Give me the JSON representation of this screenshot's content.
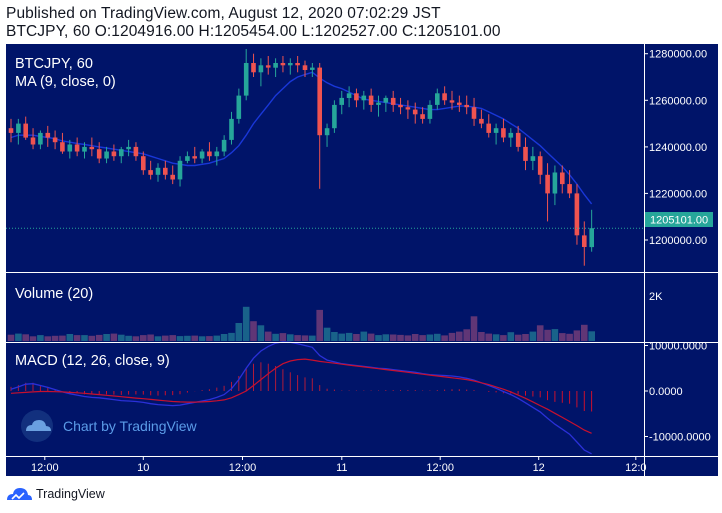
{
  "header": {
    "published_line": "Published on TradingView.com, August 12, 2020 07:02:29 JST",
    "ohlc_line": "BTCJPY, 60 O:1204916.00 H:1205454.00 L:1202527.00 C:1205101.00"
  },
  "footer": {
    "brand": "TradingView"
  },
  "colors": {
    "background": "#001469",
    "up": "#26a69a",
    "down": "#ef5350",
    "ma": "#1937d8",
    "macd": "#2a30d8",
    "signal": "#c8102e",
    "axis_text": "#ffffff",
    "price_tag": "#26a69a"
  },
  "watermark": {
    "text": "Chart by TradingView",
    "icon": "tradingview-cloud-icon"
  },
  "chart_data": [
    {
      "type": "candlestick",
      "title": "BTCJPY, 60",
      "indicator_label": "MA (9, close, 0)",
      "y_ticks": [
        "1280000.00",
        "1260000.00",
        "1240000.00",
        "1220000.00",
        "1200000.00"
      ],
      "ylim": [
        1188000,
        1282000
      ],
      "last_price": 1205101,
      "last_price_label": "1205101.00",
      "x_ticks": [
        "12:00",
        "10",
        "12:00",
        "11",
        "12:00",
        "12",
        "12:0"
      ],
      "ohlc": [
        [
          1248000,
          1252000,
          1242000,
          1246000
        ],
        [
          1246000,
          1252000,
          1241000,
          1250000
        ],
        [
          1250000,
          1253000,
          1243000,
          1244000
        ],
        [
          1244000,
          1248000,
          1239000,
          1241000
        ],
        [
          1241000,
          1247000,
          1239000,
          1246000
        ],
        [
          1246000,
          1249000,
          1240000,
          1244000
        ],
        [
          1244000,
          1247000,
          1239000,
          1242000
        ],
        [
          1242000,
          1246000,
          1237000,
          1238000
        ],
        [
          1238000,
          1243000,
          1235000,
          1241000
        ],
        [
          1241000,
          1244000,
          1236000,
          1238000
        ],
        [
          1238000,
          1242000,
          1235000,
          1240000
        ],
        [
          1240000,
          1244000,
          1236000,
          1239000
        ],
        [
          1239000,
          1242000,
          1233000,
          1235000
        ],
        [
          1235000,
          1240000,
          1233000,
          1238000
        ],
        [
          1238000,
          1241000,
          1234000,
          1236000
        ],
        [
          1236000,
          1240000,
          1233000,
          1239000
        ],
        [
          1239000,
          1243000,
          1236000,
          1240000
        ],
        [
          1240000,
          1242000,
          1234000,
          1236000
        ],
        [
          1236000,
          1238000,
          1228000,
          1230000
        ],
        [
          1230000,
          1234000,
          1226000,
          1228000
        ],
        [
          1228000,
          1233000,
          1225000,
          1231000
        ],
        [
          1231000,
          1234000,
          1226000,
          1228000
        ],
        [
          1228000,
          1232000,
          1224000,
          1226000
        ],
        [
          1226000,
          1236000,
          1223000,
          1234000
        ],
        [
          1234000,
          1238000,
          1233000,
          1236000
        ],
        [
          1236000,
          1240000,
          1233000,
          1235000
        ],
        [
          1235000,
          1239000,
          1233000,
          1238000
        ],
        [
          1238000,
          1242000,
          1234000,
          1236000
        ],
        [
          1236000,
          1240000,
          1232000,
          1238000
        ],
        [
          1238000,
          1245000,
          1236000,
          1243000
        ],
        [
          1243000,
          1255000,
          1241000,
          1252000
        ],
        [
          1252000,
          1265000,
          1250000,
          1262000
        ],
        [
          1262000,
          1282000,
          1260000,
          1276000
        ],
        [
          1276000,
          1280000,
          1270000,
          1272000
        ],
        [
          1272000,
          1278000,
          1266000,
          1275000
        ],
        [
          1275000,
          1279000,
          1271000,
          1274000
        ],
        [
          1274000,
          1278000,
          1270000,
          1276000
        ],
        [
          1276000,
          1279000,
          1272000,
          1275000
        ],
        [
          1275000,
          1278000,
          1271000,
          1276000
        ],
        [
          1276000,
          1279000,
          1272000,
          1275000
        ],
        [
          1275000,
          1277000,
          1270000,
          1273000
        ],
        [
          1273000,
          1276000,
          1270000,
          1274000
        ],
        [
          1274000,
          1276000,
          1222000,
          1245000
        ],
        [
          1245000,
          1250000,
          1240000,
          1248000
        ],
        [
          1248000,
          1260000,
          1246000,
          1258000
        ],
        [
          1258000,
          1264000,
          1254000,
          1261000
        ],
        [
          1261000,
          1266000,
          1257000,
          1263000
        ],
        [
          1263000,
          1265000,
          1257000,
          1260000
        ],
        [
          1260000,
          1264000,
          1256000,
          1262000
        ],
        [
          1262000,
          1265000,
          1255000,
          1258000
        ],
        [
          1258000,
          1262000,
          1253000,
          1259000
        ],
        [
          1259000,
          1262000,
          1255000,
          1261000
        ],
        [
          1261000,
          1264000,
          1255000,
          1258000
        ],
        [
          1258000,
          1261000,
          1254000,
          1257000
        ],
        [
          1257000,
          1260000,
          1252000,
          1256000
        ],
        [
          1256000,
          1259000,
          1250000,
          1254000
        ],
        [
          1254000,
          1257000,
          1250000,
          1252000
        ],
        [
          1252000,
          1260000,
          1250000,
          1258000
        ],
        [
          1258000,
          1265000,
          1256000,
          1263000
        ],
        [
          1263000,
          1266000,
          1258000,
          1260000
        ],
        [
          1260000,
          1264000,
          1256000,
          1259000
        ],
        [
          1259000,
          1262000,
          1255000,
          1258000
        ],
        [
          1258000,
          1262000,
          1254000,
          1257000
        ],
        [
          1257000,
          1261000,
          1249000,
          1252000
        ],
        [
          1252000,
          1256000,
          1248000,
          1250000
        ],
        [
          1250000,
          1254000,
          1244000,
          1246000
        ],
        [
          1246000,
          1250000,
          1241000,
          1248000
        ],
        [
          1248000,
          1252000,
          1242000,
          1244000
        ],
        [
          1244000,
          1248000,
          1240000,
          1246000
        ],
        [
          1246000,
          1249000,
          1238000,
          1240000
        ],
        [
          1240000,
          1244000,
          1230000,
          1234000
        ],
        [
          1234000,
          1240000,
          1230000,
          1236000
        ],
        [
          1236000,
          1238000,
          1224000,
          1228000
        ],
        [
          1228000,
          1233000,
          1208000,
          1220000
        ],
        [
          1220000,
          1232000,
          1215000,
          1229000
        ],
        [
          1229000,
          1232000,
          1220000,
          1224000
        ],
        [
          1224000,
          1230000,
          1218000,
          1220000
        ],
        [
          1220000,
          1224000,
          1198000,
          1202000
        ],
        [
          1202000,
          1208000,
          1189000,
          1197000
        ],
        [
          1197000,
          1213000,
          1195000,
          1205101
        ]
      ],
      "ma": [
        1244000,
        1245000,
        1245000,
        1245000,
        1244500,
        1244000,
        1243500,
        1242500,
        1242000,
        1241500,
        1241000,
        1240500,
        1240000,
        1239500,
        1239000,
        1238500,
        1238000,
        1237500,
        1237000,
        1236000,
        1235000,
        1234000,
        1233000,
        1232500,
        1232000,
        1232000,
        1232500,
        1233000,
        1234000,
        1235000,
        1237500,
        1240500,
        1245000,
        1250000,
        1254000,
        1258000,
        1262000,
        1265000,
        1268000,
        1270000,
        1271000,
        1272000,
        1269500,
        1267500,
        1266000,
        1265000,
        1263500,
        1262000,
        1260500,
        1260000,
        1259500,
        1259000,
        1258500,
        1258000,
        1257500,
        1257000,
        1256500,
        1256000,
        1256000,
        1256500,
        1257000,
        1257500,
        1257500,
        1257000,
        1256500,
        1255000,
        1253500,
        1252000,
        1250000,
        1248000,
        1245500,
        1243000,
        1240500,
        1237500,
        1234500,
        1231500,
        1228000,
        1224000,
        1219500,
        1215500
      ],
      "volume": [
        280,
        330,
        300,
        210,
        260,
        210,
        230,
        240,
        310,
        260,
        260,
        230,
        270,
        310,
        330,
        280,
        230,
        210,
        260,
        290,
        210,
        240,
        260,
        220,
        230,
        240,
        210,
        220,
        240,
        310,
        360,
        800,
        1520,
        880,
        700,
        420,
        320,
        350,
        300,
        260,
        250,
        240,
        1380,
        590,
        400,
        330,
        360,
        310,
        420,
        330,
        260,
        300,
        290,
        270,
        250,
        310,
        260,
        290,
        320,
        250,
        360,
        420,
        520,
        1100,
        400,
        330,
        300,
        260,
        390,
        280,
        310,
        420,
        700,
        500,
        530,
        350,
        320,
        470,
        720,
        430
      ],
      "volume_colors": "matches candle direction",
      "volume_tick": "2K",
      "volume_max": 2000,
      "volume_label": "Volume (20)"
    },
    {
      "type": "macd",
      "label": "MACD (12, 26, close, 9)",
      "y_ticks": [
        "10000.0000",
        "0.0000",
        "-10000.0000"
      ],
      "ylim": [
        -15000,
        11000
      ],
      "macd": [
        400,
        900,
        1500,
        1600,
        1200,
        800,
        300,
        -200,
        -600,
        -900,
        -1200,
        -1400,
        -1500,
        -1700,
        -1900,
        -2100,
        -2200,
        -2300,
        -2500,
        -2800,
        -3000,
        -3100,
        -3200,
        -3100,
        -2800,
        -2500,
        -2200,
        -1900,
        -1400,
        -800,
        500,
        2500,
        5000,
        7200,
        8800,
        9800,
        10500,
        10800,
        10700,
        10400,
        10000,
        9600,
        7800,
        6800,
        6400,
        6000,
        5800,
        5600,
        5400,
        5200,
        5000,
        4900,
        4700,
        4500,
        4300,
        4100,
        3800,
        3600,
        3500,
        3400,
        3300,
        3100,
        2800,
        2400,
        1800,
        1200,
        600,
        -100,
        -800,
        -1600,
        -2600,
        -3600,
        -4600,
        -6000,
        -7300,
        -8400,
        -9500,
        -11200,
        -13000,
        -13800
      ],
      "signal": [
        -500,
        -400,
        -300,
        -200,
        -100,
        -100,
        -150,
        -200,
        -300,
        -400,
        -500,
        -650,
        -800,
        -950,
        -1100,
        -1250,
        -1400,
        -1550,
        -1700,
        -1850,
        -2000,
        -2150,
        -2300,
        -2400,
        -2450,
        -2450,
        -2400,
        -2300,
        -2150,
        -1950,
        -1500,
        -800,
        0,
        1200,
        2500,
        3800,
        5000,
        6000,
        6600,
        6900,
        7000,
        6800,
        6500,
        6300,
        6100,
        5900,
        5700,
        5500,
        5300,
        5100,
        4900,
        4700,
        4500,
        4300,
        4100,
        3900,
        3700,
        3500,
        3300,
        3100,
        2900,
        2700,
        2500,
        2200,
        1800,
        1400,
        900,
        400,
        -200,
        -900,
        -1600,
        -2400,
        -3200,
        -4000,
        -4900,
        -5800,
        -6700,
        -7600,
        -8600,
        -9300
      ]
    }
  ]
}
